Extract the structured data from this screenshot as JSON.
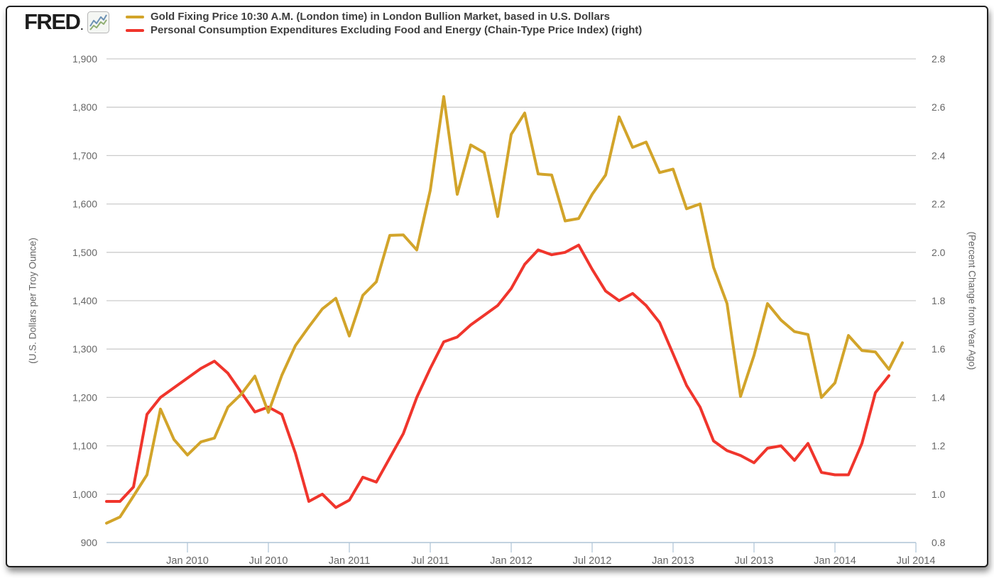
{
  "header": {
    "logo_text": "FRED",
    "legend": [
      {
        "label": "Gold Fixing Price 10:30 A.M. (London time) in London Bullion Market, based in U.S. Dollars",
        "color": "#d2a42a"
      },
      {
        "label": "Personal Consumption Expenditures Excluding Food and Energy (Chain-Type Price Index) (right)",
        "color": "#f0352c"
      }
    ]
  },
  "colors": {
    "grid": "#cccccc",
    "axis": "#aec3d6",
    "tick_text": "#666666",
    "gold_line": "#d2a42a",
    "red_line": "#f0352c"
  },
  "chart_data": {
    "type": "line",
    "title": "",
    "grid": true,
    "legend_position": "top",
    "left_axis": {
      "title": "(U.S. Dollars per Troy Ounce)",
      "min": 900,
      "max": 1900,
      "step": 100,
      "tick_labels": [
        "900",
        "1,000",
        "1,100",
        "1,200",
        "1,300",
        "1,400",
        "1,500",
        "1,600",
        "1,700",
        "1,800",
        "1,900"
      ]
    },
    "right_axis": {
      "title": "(Percent Change from Year Ago)",
      "min": 0.8,
      "max": 2.8,
      "step": 0.2,
      "tick_labels": [
        "0.8",
        "1.0",
        "1.2",
        "1.4",
        "1.6",
        "1.8",
        "2.0",
        "2.2",
        "2.4",
        "2.6",
        "2.8"
      ]
    },
    "x_axis": {
      "start_month": "2009-07",
      "end_month": "2014-07",
      "months_total": 60,
      "tick_labels": [
        "Jan 2010",
        "Jul 2010",
        "Jan 2011",
        "Jul 2011",
        "Jan 2012",
        "Jul 2012",
        "Jan 2013",
        "Jul 2013",
        "Jan 2014",
        "Jul 2014"
      ],
      "tick_month_offsets": [
        6,
        12,
        18,
        24,
        30,
        36,
        42,
        48,
        54,
        60
      ]
    },
    "series": [
      {
        "name": "Gold Fixing Price 10:30 A.M. (London time) in London Bullion Market, based in U.S. Dollars",
        "axis": "left",
        "color": "#d2a42a",
        "unit": "U.S. Dollars per Troy Ounce",
        "first_month": "2009-07",
        "values": [
          940,
          953,
          996,
          1040,
          1176,
          1113,
          1081,
          1108,
          1116,
          1180,
          1207,
          1244,
          1169,
          1246,
          1307,
          1346,
          1383,
          1405,
          1327,
          1411,
          1439,
          1535,
          1536,
          1505,
          1628,
          1822,
          1620,
          1722,
          1706,
          1574,
          1744,
          1788,
          1662,
          1660,
          1565,
          1570,
          1620,
          1660,
          1780,
          1717,
          1728,
          1665,
          1672,
          1590,
          1600,
          1469,
          1394,
          1202,
          1287,
          1394,
          1360,
          1336,
          1330,
          1200,
          1230,
          1328,
          1297,
          1294,
          1258,
          1313
        ]
      },
      {
        "name": "Personal Consumption Expenditures Excluding Food and Energy (Chain-Type Price Index)",
        "axis": "right",
        "color": "#f0352c",
        "unit": "Percent Change from Year Ago",
        "first_month": "2009-07",
        "values": [
          0.97,
          0.97,
          1.03,
          1.33,
          1.4,
          1.44,
          1.48,
          1.52,
          1.55,
          1.5,
          1.42,
          1.34,
          1.36,
          1.33,
          1.17,
          0.97,
          1.0,
          0.945,
          0.975,
          1.07,
          1.05,
          1.15,
          1.25,
          1.4,
          1.52,
          1.63,
          1.65,
          1.7,
          1.74,
          1.78,
          1.85,
          1.95,
          2.01,
          1.99,
          2.0,
          2.03,
          1.93,
          1.84,
          1.8,
          1.83,
          1.78,
          1.71,
          1.58,
          1.45,
          1.36,
          1.22,
          1.18,
          1.16,
          1.13,
          1.19,
          1.2,
          1.14,
          1.21,
          1.09,
          1.08,
          1.08,
          1.21,
          1.42,
          1.49
        ]
      }
    ]
  }
}
